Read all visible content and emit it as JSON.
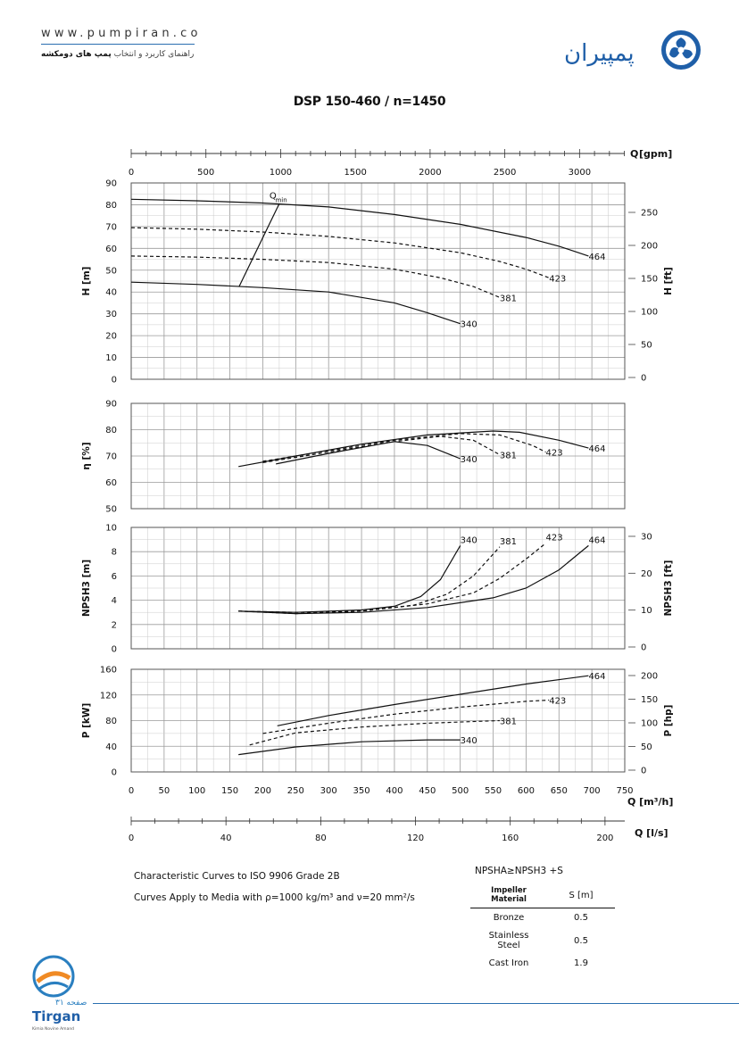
{
  "header": {
    "url": "www.pumpiran.co",
    "tagline_prefix": "راهنمای کاربرد و انتخاب ",
    "tagline_bold": "پمپ های دومکشه",
    "logo_text": "پمپیران"
  },
  "footer": {
    "page_label": "صفحه ۳۱",
    "brand": "Tirgan",
    "brand_sub": "Kimia Novine Amand"
  },
  "title": "DSP 150-460 / n=1450",
  "notes": {
    "line1": "Characteristic Curves to ISO 9906 Grade 2B",
    "line2": "Curves Apply to Media with  ρ=1000 kg/m³ and ν=20 mm²/s",
    "npsh_eq": "NPSHA≥NPSH3 +S"
  },
  "impeller_table": {
    "headers": [
      "Impeller Material",
      "S [m]"
    ],
    "rows": [
      [
        "Bronze",
        "0.5"
      ],
      [
        "Stainless Steel",
        "0.5"
      ],
      [
        "Cast Iron",
        "1.9"
      ]
    ]
  },
  "chart_data": [
    {
      "type": "line",
      "name": "head",
      "ylabel": "H [m]",
      "ylabel_right": "H [ft]",
      "xlabel_top": "Q [gpm]",
      "x_top_ticks": [
        "0",
        "500",
        "1000",
        "1500",
        "2000",
        "2500",
        "3000"
      ],
      "xlim": [
        0,
        750
      ],
      "ylim": [
        0,
        90
      ],
      "y_ticks": [
        "0",
        "10",
        "20",
        "30",
        "40",
        "50",
        "60",
        "70",
        "80",
        "90"
      ],
      "y_right_ticks": [
        "0",
        "50",
        "100",
        "150",
        "200",
        "250"
      ],
      "grid": true,
      "annotation": "Qmin",
      "series": [
        {
          "name": "464",
          "style": "solid",
          "x": [
            0,
            100,
            200,
            300,
            400,
            500,
            600,
            650,
            695
          ],
          "y": [
            82.5,
            81.8,
            80.8,
            79,
            75.5,
            71,
            65,
            61,
            56.5
          ]
        },
        {
          "name": "423",
          "style": "dashed",
          "x": [
            0,
            100,
            200,
            300,
            400,
            500,
            560,
            600,
            635
          ],
          "y": [
            69.5,
            68.8,
            67.5,
            65.5,
            62.5,
            58,
            54,
            50.5,
            46.5
          ]
        },
        {
          "name": "381",
          "style": "dashed",
          "x": [
            0,
            100,
            200,
            300,
            400,
            470,
            520,
            560
          ],
          "y": [
            56.5,
            56,
            55,
            53.5,
            50.5,
            46.5,
            42.5,
            37.5
          ]
        },
        {
          "name": "340",
          "style": "solid",
          "x": [
            0,
            100,
            200,
            300,
            400,
            450,
            500
          ],
          "y": [
            44.5,
            43.5,
            42,
            40,
            35,
            30.5,
            25.5
          ]
        },
        {
          "name": "Qmin",
          "style": "solid",
          "x": [
            164,
            225
          ],
          "y": [
            42.5,
            80.5
          ]
        }
      ]
    },
    {
      "type": "line",
      "name": "efficiency",
      "ylabel": "η [%]",
      "xlim": [
        0,
        750
      ],
      "ylim": [
        50,
        90
      ],
      "y_ticks": [
        "50",
        "60",
        "70",
        "80",
        "90"
      ],
      "grid": true,
      "series": [
        {
          "name": "464",
          "style": "solid",
          "x": [
            163,
            250,
            350,
            450,
            550,
            590,
            650,
            695
          ],
          "y": [
            66,
            70,
            74.5,
            78,
            79.5,
            79,
            76,
            73
          ]
        },
        {
          "name": "423",
          "style": "dashed",
          "x": [
            200,
            300,
            400,
            500,
            560,
            610,
            630
          ],
          "y": [
            68,
            72,
            76,
            78.5,
            78,
            74,
            71.5
          ]
        },
        {
          "name": "381",
          "style": "dashed",
          "x": [
            200,
            300,
            400,
            470,
            520,
            560
          ],
          "y": [
            67.5,
            71.5,
            75.5,
            77.5,
            76,
            70.5
          ]
        },
        {
          "name": "340",
          "style": "solid",
          "x": [
            220,
            300,
            400,
            450,
            500
          ],
          "y": [
            67,
            71,
            75.5,
            74,
            69
          ]
        }
      ]
    },
    {
      "type": "line",
      "name": "npsh",
      "ylabel": "NPSH3 [m]",
      "ylabel_right": "NPSH3 [ft]",
      "xlim": [
        0,
        750
      ],
      "ylim": [
        0,
        10
      ],
      "y_ticks": [
        "0",
        "2",
        "4",
        "6",
        "8",
        "10"
      ],
      "y_right_ticks": [
        "0",
        "10",
        "20",
        "30"
      ],
      "grid": true,
      "series": [
        {
          "name": "464",
          "style": "solid",
          "x": [
            163,
            250,
            350,
            450,
            550,
            600,
            650,
            695
          ],
          "y": [
            3.1,
            2.9,
            3,
            3.4,
            4.2,
            5,
            6.5,
            8.5
          ]
        },
        {
          "name": "423",
          "style": "dashed",
          "x": [
            163,
            250,
            350,
            450,
            520,
            560,
            600,
            630
          ],
          "y": [
            3.1,
            2.9,
            3.1,
            3.7,
            4.6,
            5.8,
            7.4,
            8.7
          ]
        },
        {
          "name": "381",
          "style": "dashed",
          "x": [
            163,
            250,
            350,
            430,
            480,
            520,
            560
          ],
          "y": [
            3.1,
            3,
            3.1,
            3.6,
            4.5,
            6,
            8.4
          ]
        },
        {
          "name": "340",
          "style": "solid",
          "x": [
            163,
            250,
            350,
            400,
            440,
            470,
            500
          ],
          "y": [
            3.1,
            3,
            3.2,
            3.5,
            4.3,
            5.7,
            8.5
          ]
        }
      ]
    },
    {
      "type": "line",
      "name": "power",
      "ylabel": "P [kW]",
      "ylabel_right": "P [hp]",
      "xlabel": "Q [m³/h]",
      "xlabel_bottom": "Q [l/s]",
      "xlim": [
        0,
        750
      ],
      "ylim": [
        0,
        160
      ],
      "x_ticks": [
        "0",
        "50",
        "100",
        "150",
        "200",
        "250",
        "300",
        "350",
        "400",
        "450",
        "500",
        "550",
        "600",
        "650",
        "700",
        "750"
      ],
      "x_bottom_ticks": [
        "0",
        "40",
        "80",
        "120",
        "160",
        "200"
      ],
      "y_ticks": [
        "0",
        "40",
        "80",
        "120",
        "160"
      ],
      "y_right_ticks": [
        "0",
        "50",
        "100",
        "150",
        "200"
      ],
      "grid": true,
      "series": [
        {
          "name": "464",
          "style": "solid",
          "x": [
            222,
            300,
            400,
            500,
            600,
            695
          ],
          "y": [
            72,
            88,
            105,
            121,
            137,
            150
          ]
        },
        {
          "name": "423",
          "style": "dashed",
          "x": [
            200,
            300,
            400,
            500,
            600,
            635
          ],
          "y": [
            60,
            76,
            90,
            101,
            110,
            112
          ]
        },
        {
          "name": "381",
          "style": "dashed",
          "x": [
            180,
            250,
            350,
            450,
            560
          ],
          "y": [
            42,
            61,
            70,
            76,
            80
          ]
        },
        {
          "name": "340",
          "style": "solid",
          "x": [
            163,
            250,
            350,
            450,
            500
          ],
          "y": [
            27,
            39,
            47,
            50,
            50
          ]
        }
      ]
    }
  ]
}
